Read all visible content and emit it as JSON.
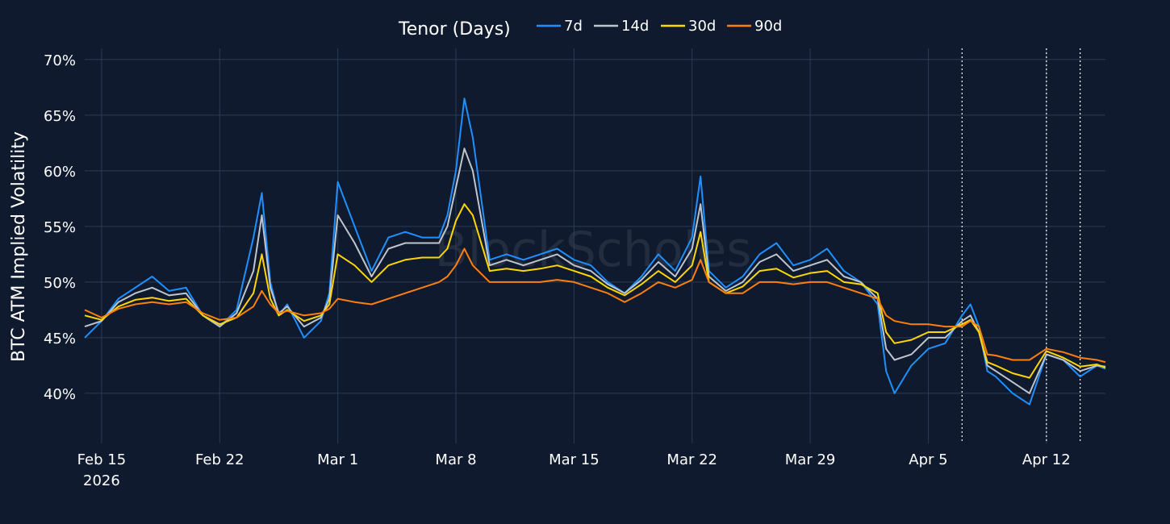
{
  "chart_data": {
    "type": "line",
    "title": "",
    "watermark": "BlockScholes",
    "ylabel": "BTC ATM Implied Volatility",
    "xlabel": "",
    "legend": {
      "title": "Tenor (Days)",
      "placement": "top-center"
    },
    "xlim": [
      "2026-02-14T00:00",
      "2026-04-15T12:00"
    ],
    "ylim": [
      0.355,
      0.71
    ],
    "x_ticks": [
      {
        "date": "2026-02-15",
        "label": "Feb 15",
        "sublabel": "2026"
      },
      {
        "date": "2026-02-22",
        "label": "Feb 22"
      },
      {
        "date": "2026-03-01",
        "label": "Mar 1"
      },
      {
        "date": "2026-03-08",
        "label": "Mar 8"
      },
      {
        "date": "2026-03-15",
        "label": "Mar 15"
      },
      {
        "date": "2026-03-22",
        "label": "Mar 22"
      },
      {
        "date": "2026-03-29",
        "label": "Mar 29"
      },
      {
        "date": "2026-04-05",
        "label": "Apr 5"
      },
      {
        "date": "2026-04-12",
        "label": "Apr 12"
      }
    ],
    "y_ticks": [
      {
        "value": 0.4,
        "label": "40%"
      },
      {
        "value": 0.45,
        "label": "45%"
      },
      {
        "value": 0.5,
        "label": "50%"
      },
      {
        "value": 0.55,
        "label": "55%"
      },
      {
        "value": 0.6,
        "label": "60%"
      },
      {
        "value": 0.65,
        "label": "65%"
      },
      {
        "value": 0.7,
        "label": "70%"
      }
    ],
    "grid": true,
    "vlines": [
      "2026-04-07T00:00",
      "2026-04-12T00:00",
      "2026-04-14T00:00"
    ],
    "x": [
      "2026-02-14T00:00",
      "2026-02-15T00:00",
      "2026-02-16T00:00",
      "2026-02-17T00:00",
      "2026-02-18T00:00",
      "2026-02-19T00:00",
      "2026-02-20T00:00",
      "2026-02-21T00:00",
      "2026-02-22T00:00",
      "2026-02-23T00:00",
      "2026-02-24T00:00",
      "2026-02-24T12:00",
      "2026-02-25T00:00",
      "2026-02-25T12:00",
      "2026-02-26T00:00",
      "2026-02-27T00:00",
      "2026-02-28T00:00",
      "2026-02-28T12:00",
      "2026-03-01T00:00",
      "2026-03-02T00:00",
      "2026-03-03T00:00",
      "2026-03-04T00:00",
      "2026-03-05T00:00",
      "2026-03-06T00:00",
      "2026-03-07T00:00",
      "2026-03-07T12:00",
      "2026-03-08T00:00",
      "2026-03-08T12:00",
      "2026-03-09T00:00",
      "2026-03-10T00:00",
      "2026-03-11T00:00",
      "2026-03-12T00:00",
      "2026-03-13T00:00",
      "2026-03-14T00:00",
      "2026-03-15T00:00",
      "2026-03-16T00:00",
      "2026-03-17T00:00",
      "2026-03-18T00:00",
      "2026-03-19T00:00",
      "2026-03-20T00:00",
      "2026-03-21T00:00",
      "2026-03-22T00:00",
      "2026-03-22T12:00",
      "2026-03-23T00:00",
      "2026-03-24T00:00",
      "2026-03-25T00:00",
      "2026-03-26T00:00",
      "2026-03-27T00:00",
      "2026-03-28T00:00",
      "2026-03-29T00:00",
      "2026-03-30T00:00",
      "2026-03-31T00:00",
      "2026-04-01T00:00",
      "2026-04-02T00:00",
      "2026-04-02T12:00",
      "2026-04-03T00:00",
      "2026-04-04T00:00",
      "2026-04-05T00:00",
      "2026-04-06T00:00",
      "2026-04-07T00:00",
      "2026-04-07T12:00",
      "2026-04-08T00:00",
      "2026-04-08T12:00",
      "2026-04-09T00:00",
      "2026-04-10T00:00",
      "2026-04-11T00:00",
      "2026-04-12T00:00",
      "2026-04-13T00:00",
      "2026-04-14T00:00",
      "2026-04-15T00:00",
      "2026-04-15T12:00"
    ],
    "series": [
      {
        "name": "7d",
        "color": "#1e90ff",
        "values": [
          0.45,
          0.465,
          0.485,
          0.495,
          0.505,
          0.492,
          0.495,
          0.47,
          0.46,
          0.475,
          0.54,
          0.58,
          0.5,
          0.47,
          0.48,
          0.45,
          0.465,
          0.49,
          0.59,
          0.55,
          0.51,
          0.54,
          0.545,
          0.54,
          0.54,
          0.56,
          0.6,
          0.665,
          0.63,
          0.52,
          0.525,
          0.52,
          0.525,
          0.53,
          0.52,
          0.515,
          0.5,
          0.49,
          0.505,
          0.525,
          0.51,
          0.54,
          0.595,
          0.51,
          0.495,
          0.505,
          0.525,
          0.535,
          0.515,
          0.52,
          0.53,
          0.51,
          0.5,
          0.48,
          0.42,
          0.4,
          0.425,
          0.44,
          0.445,
          0.47,
          0.48,
          0.46,
          0.42,
          0.415,
          0.4,
          0.39,
          0.435,
          0.43,
          0.415,
          0.425,
          0.422
        ]
      },
      {
        "name": "14d",
        "color": "#bfc5cc",
        "values": [
          0.46,
          0.465,
          0.482,
          0.49,
          0.495,
          0.488,
          0.49,
          0.47,
          0.46,
          0.472,
          0.51,
          0.56,
          0.495,
          0.472,
          0.478,
          0.46,
          0.468,
          0.485,
          0.56,
          0.535,
          0.505,
          0.53,
          0.535,
          0.535,
          0.535,
          0.55,
          0.585,
          0.62,
          0.6,
          0.515,
          0.52,
          0.515,
          0.52,
          0.525,
          0.515,
          0.51,
          0.498,
          0.49,
          0.502,
          0.518,
          0.505,
          0.53,
          0.57,
          0.505,
          0.492,
          0.5,
          0.518,
          0.525,
          0.51,
          0.515,
          0.52,
          0.505,
          0.5,
          0.485,
          0.44,
          0.43,
          0.435,
          0.45,
          0.45,
          0.465,
          0.47,
          0.455,
          0.425,
          0.42,
          0.41,
          0.4,
          0.435,
          0.43,
          0.42,
          0.425,
          0.424
        ]
      },
      {
        "name": "30d",
        "color": "#ffd700",
        "values": [
          0.47,
          0.466,
          0.478,
          0.484,
          0.486,
          0.483,
          0.485,
          0.47,
          0.462,
          0.468,
          0.49,
          0.525,
          0.485,
          0.47,
          0.475,
          0.465,
          0.47,
          0.48,
          0.525,
          0.515,
          0.5,
          0.515,
          0.52,
          0.522,
          0.522,
          0.53,
          0.555,
          0.57,
          0.56,
          0.51,
          0.512,
          0.51,
          0.512,
          0.515,
          0.51,
          0.505,
          0.495,
          0.488,
          0.498,
          0.51,
          0.5,
          0.515,
          0.545,
          0.5,
          0.49,
          0.496,
          0.51,
          0.512,
          0.504,
          0.508,
          0.51,
          0.5,
          0.498,
          0.49,
          0.455,
          0.445,
          0.448,
          0.455,
          0.455,
          0.462,
          0.466,
          0.455,
          0.428,
          0.425,
          0.418,
          0.414,
          0.438,
          0.432,
          0.424,
          0.426,
          0.423
        ]
      },
      {
        "name": "90d",
        "color": "#ff7f0e",
        "values": [
          0.475,
          0.468,
          0.476,
          0.48,
          0.482,
          0.48,
          0.482,
          0.472,
          0.466,
          0.468,
          0.478,
          0.492,
          0.48,
          0.472,
          0.474,
          0.47,
          0.472,
          0.476,
          0.485,
          0.482,
          0.48,
          0.485,
          0.49,
          0.495,
          0.5,
          0.505,
          0.515,
          0.53,
          0.515,
          0.5,
          0.5,
          0.5,
          0.5,
          0.502,
          0.5,
          0.495,
          0.49,
          0.482,
          0.49,
          0.5,
          0.495,
          0.502,
          0.52,
          0.5,
          0.49,
          0.49,
          0.5,
          0.5,
          0.498,
          0.5,
          0.5,
          0.495,
          0.49,
          0.485,
          0.47,
          0.465,
          0.462,
          0.462,
          0.46,
          0.46,
          0.465,
          0.46,
          0.435,
          0.434,
          0.43,
          0.43,
          0.44,
          0.437,
          0.432,
          0.43,
          0.428
        ]
      }
    ]
  }
}
